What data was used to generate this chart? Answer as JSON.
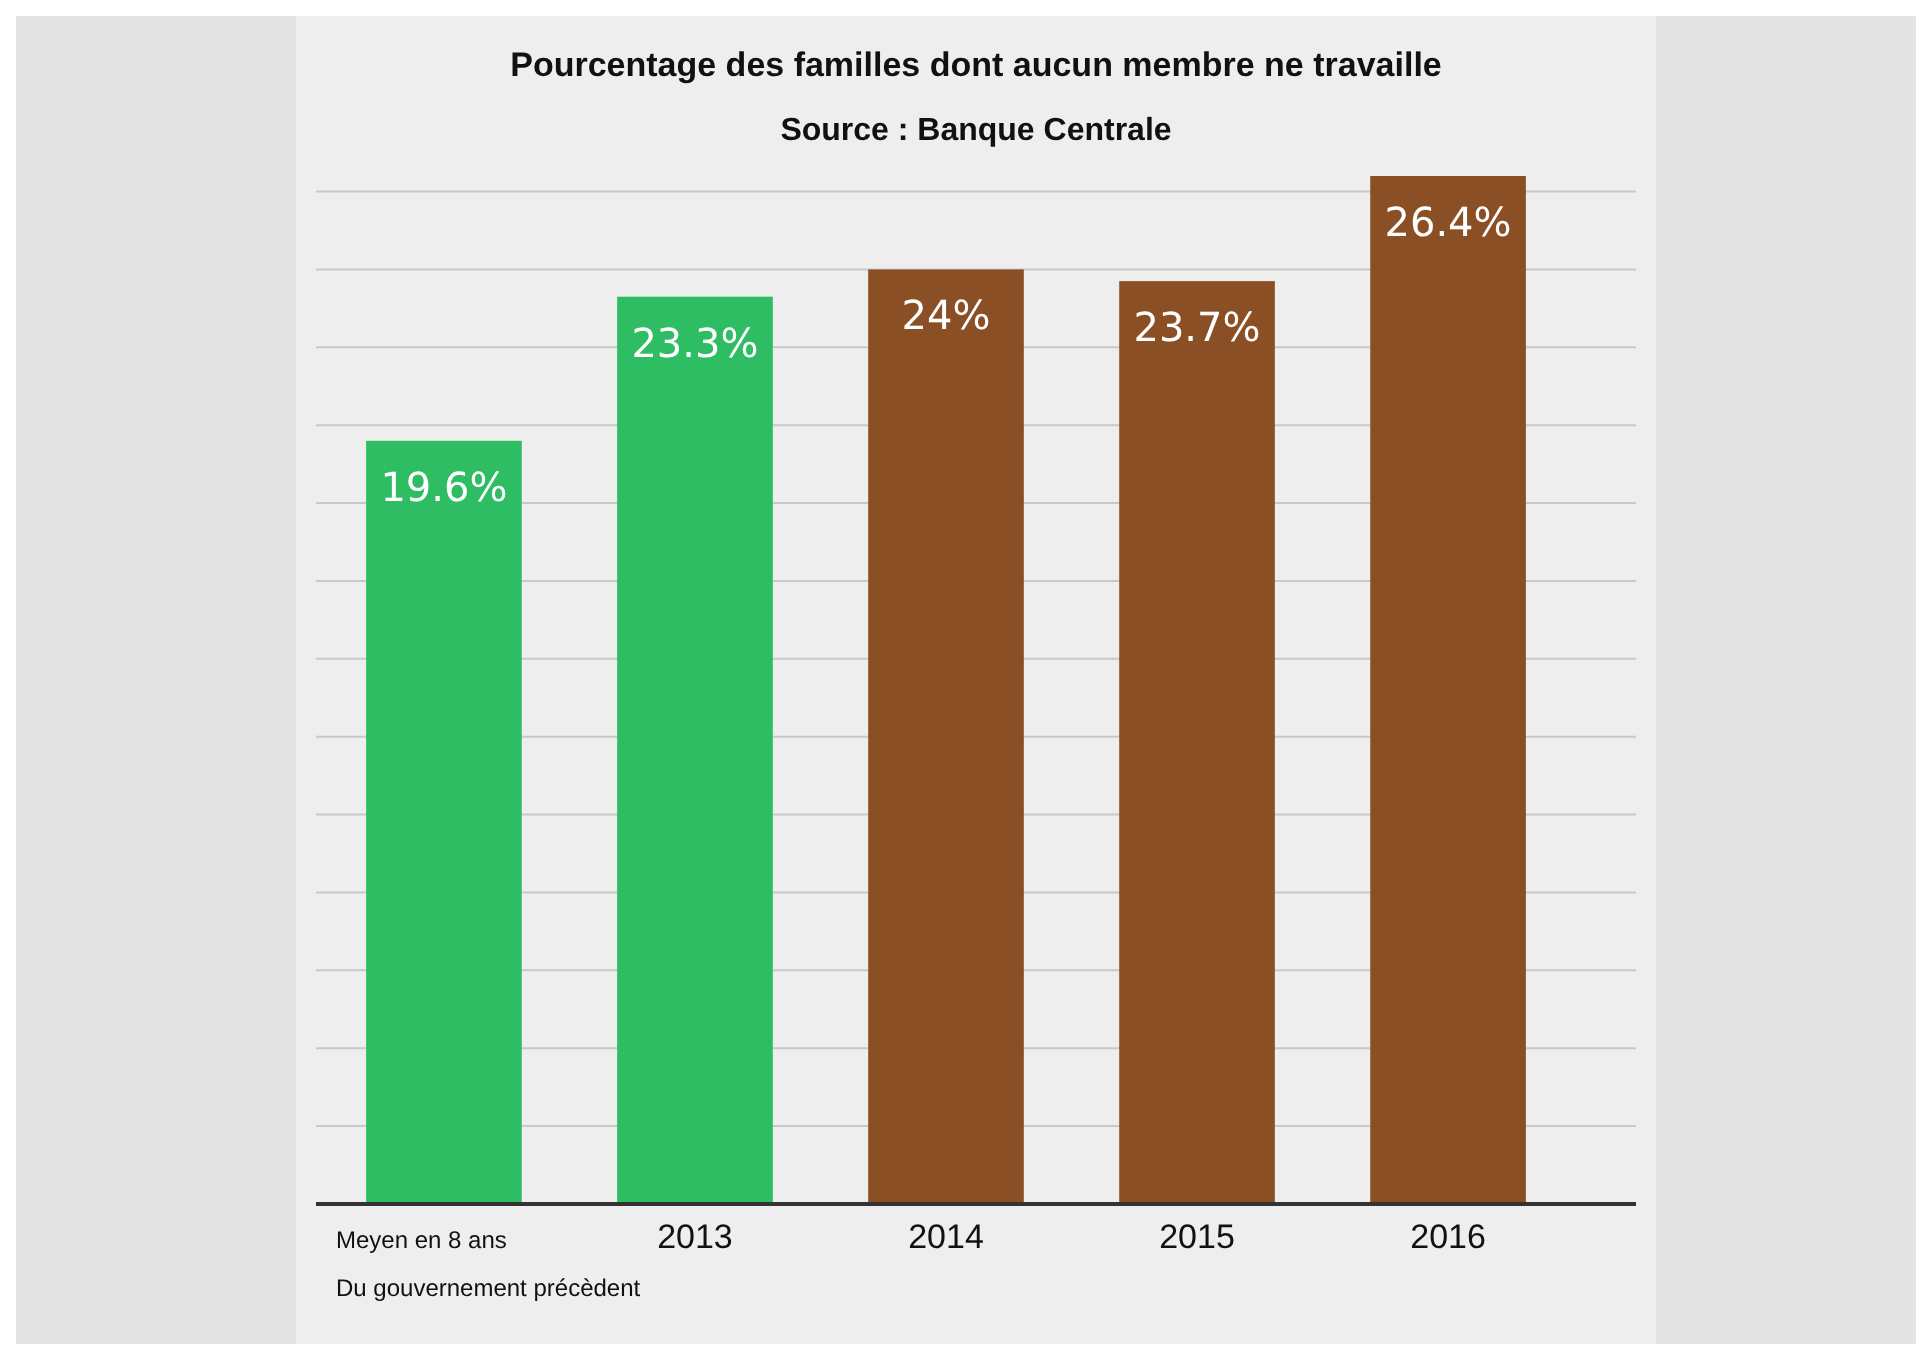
{
  "chart_data": {
    "type": "bar",
    "title": "Pourcentage des familles dont aucun membre ne travaille",
    "subtitle": "Source : Banque Centrale",
    "categories": [
      "Meyen en 8 ans\nDu gouvernement précèdent",
      "2013",
      "2014",
      "2015",
      "2016"
    ],
    "values": [
      19.6,
      23.3,
      24,
      23.7,
      26.4
    ],
    "value_labels": [
      "19.6%",
      "23.3%",
      "24%",
      "23.7%",
      "26.4%"
    ],
    "colors": [
      "#2ebd62",
      "#2ebd62",
      "#8b4f25",
      "#8b4f25",
      "#8b4f25"
    ],
    "grid": true
  }
}
